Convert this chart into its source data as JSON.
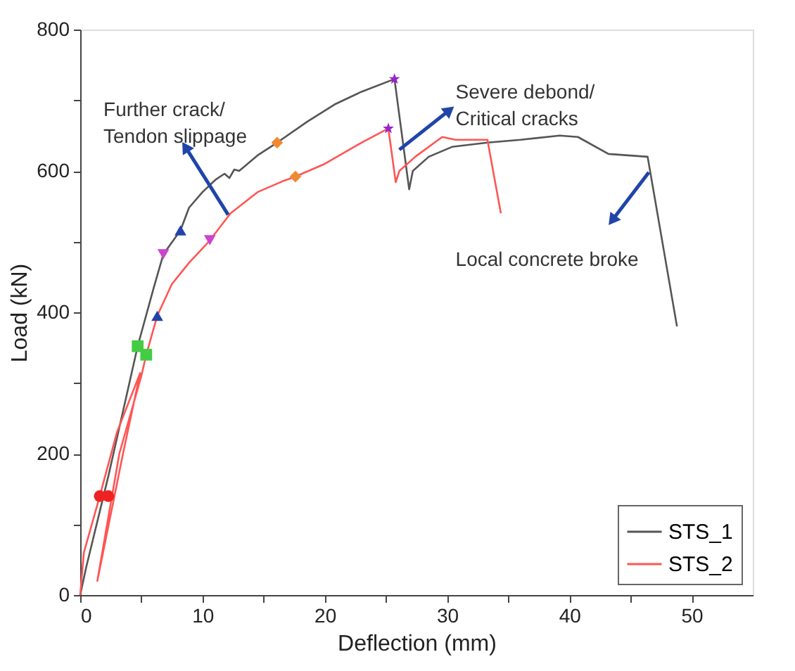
{
  "chart_data": {
    "type": "line",
    "xlabel": "Deflection (mm)",
    "ylabel": "Load (kN)",
    "xlim": [
      0,
      55
    ],
    "ylim": [
      0,
      800
    ],
    "xticks": [
      0,
      {
        "value": 5,
        "label": null
      },
      10,
      {
        "value": 15,
        "label": null
      },
      20,
      {
        "value": 25,
        "label": null
      },
      30,
      {
        "value": 35,
        "label": null
      },
      40,
      {
        "value": 45,
        "label": null
      },
      50
    ],
    "yticks": [
      0,
      {
        "value": 100,
        "label": null
      },
      200,
      {
        "value": 300,
        "label": null
      },
      400,
      {
        "value": 500,
        "label": null
      },
      600,
      {
        "value": 700,
        "label": null
      },
      800
    ],
    "grid": false,
    "legend": "bottom right",
    "line_style": "solid",
    "marker": "none",
    "annotations": [
      "Further crack/\nTendon slippage",
      "Severe debond/\nCritical cracks",
      "Local concrete broke"
    ],
    "series": [
      {
        "name": "STS_1",
        "color": "#555555",
        "x": [
          0,
          0.5,
          2.3,
          3.5,
          4.7,
          6.0,
          6.8,
          8.2,
          8.9,
          10,
          11.1,
          11.8,
          12.2,
          12.6,
          13.0,
          14.5,
          16.1,
          18.6,
          20.8,
          23,
          25.7,
          26.9,
          27.2,
          28.5,
          30.4,
          33.3,
          36,
          39.2,
          40.7,
          43.2,
          46.4,
          48.8
        ],
        "values": [
          0,
          40,
          168,
          260,
          352,
          434,
          482,
          516,
          548,
          570,
          588,
          596,
          590,
          602,
          600,
          622,
          640,
          670,
          694,
          712,
          730,
          574,
          600,
          620,
          634,
          640,
          644,
          650,
          648,
          624,
          620,
          380
        ]
      },
      {
        "name": "STS_2",
        "color": "#ff5555",
        "x": [
          0,
          0.3,
          1.6,
          3.0,
          4.9,
          3.5,
          1.4,
          3.2,
          5.0,
          5.4,
          6.3,
          7.5,
          8.9,
          10.3,
          10.6,
          12.3,
          14.5,
          16.5,
          17.6,
          20,
          23,
          25.2,
          25.8,
          26.1,
          27.4,
          29.6,
          30.7,
          33.3,
          34.4
        ],
        "values": [
          0,
          60,
          140,
          230,
          314,
          200,
          20,
          200,
          310,
          340,
          395,
          440,
          470,
          496,
          502,
          540,
          570,
          585,
          592,
          610,
          640,
          660,
          584,
          600,
          620,
          648,
          644,
          644,
          540
        ]
      },
      {
        "type": "scatter",
        "marker": "circle",
        "color": "#ee2222",
        "x": [
          1.6,
          2.3
        ],
        "values": [
          140,
          140
        ]
      },
      {
        "type": "scatter",
        "marker": "square",
        "color": "#44cc44",
        "x": [
          4.7,
          5.4
        ],
        "values": [
          352,
          340
        ]
      },
      {
        "type": "scatter",
        "marker": "triangle",
        "color": "#2244aa",
        "x": [
          6.3,
          8.2
        ],
        "values": [
          395,
          516
        ]
      },
      {
        "type": "scatter",
        "marker": "triangle-down",
        "color": "#cc44cc",
        "x": [
          6.8,
          10.6
        ],
        "values": [
          482,
          502
        ]
      },
      {
        "type": "scatter",
        "marker": "diamond",
        "color": "#f08a30",
        "x": [
          16.1,
          17.6
        ],
        "values": [
          640,
          592
        ]
      },
      {
        "type": "scatter",
        "marker": "star",
        "color": "#9922cc",
        "x": [
          25.7,
          25.2
        ],
        "values": [
          730,
          660
        ]
      }
    ]
  }
}
